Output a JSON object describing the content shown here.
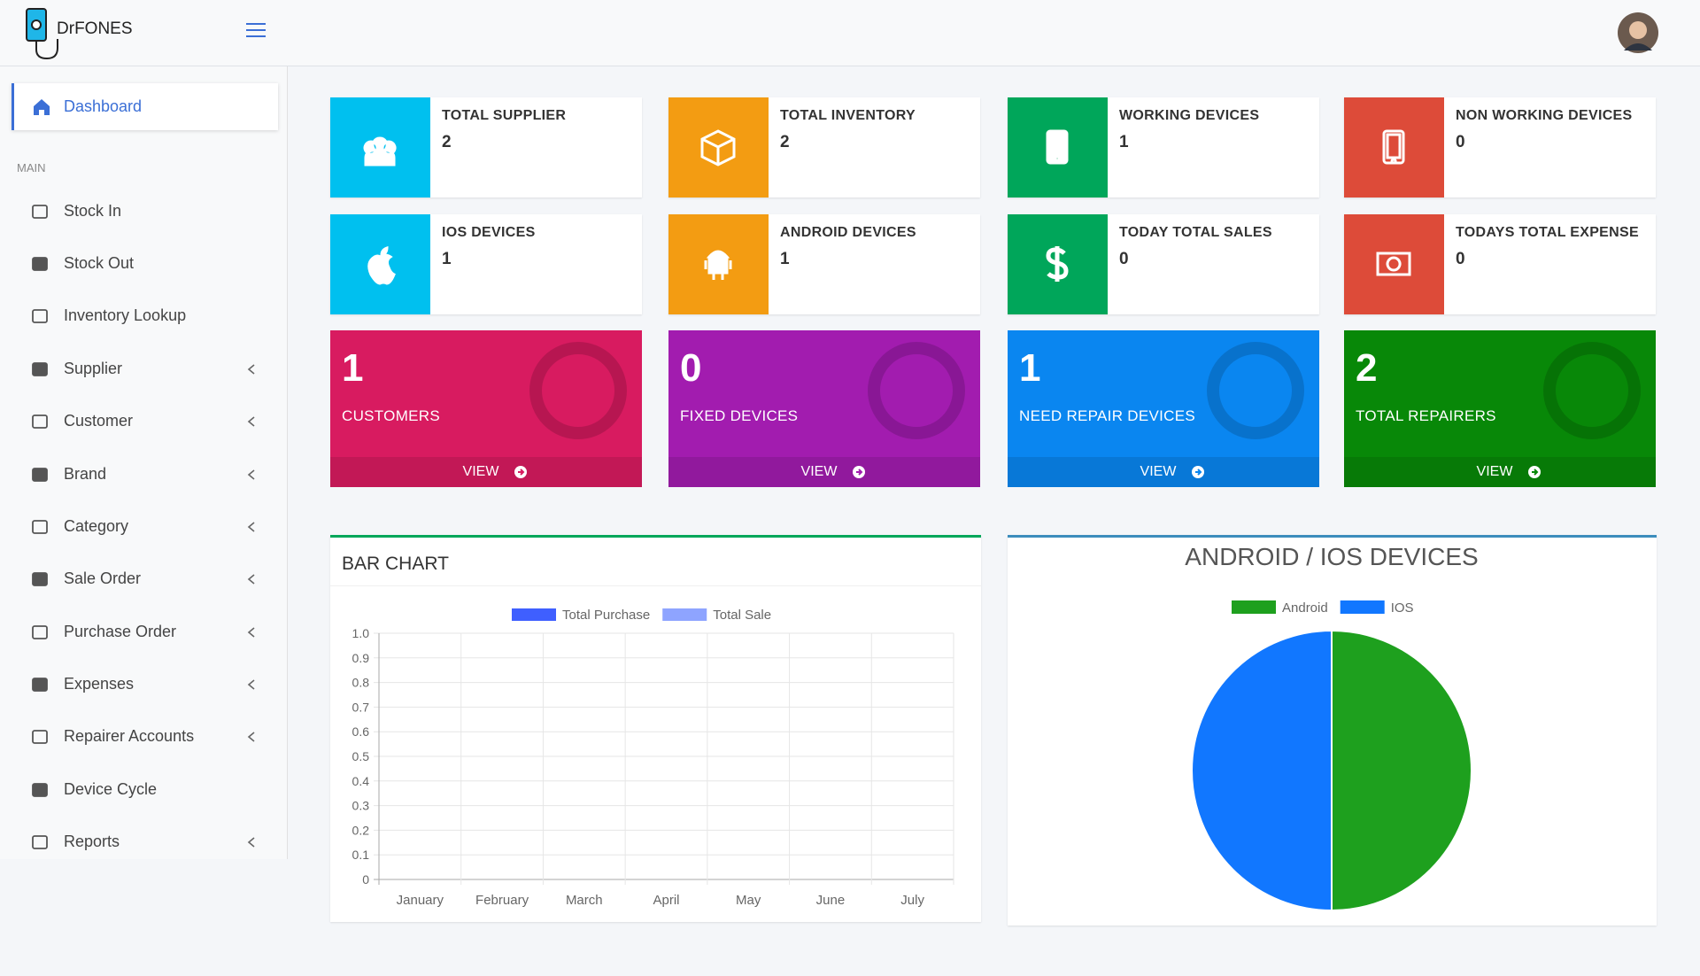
{
  "logo": {
    "prefix": "Dr",
    "name": "FONES"
  },
  "sidebar": {
    "active": "Dashboard",
    "section": "MAIN",
    "items": [
      {
        "label": "Stock In",
        "submenu": false
      },
      {
        "label": "Stock Out",
        "submenu": false
      },
      {
        "label": "Inventory Lookup",
        "submenu": false
      },
      {
        "label": "Supplier",
        "submenu": true
      },
      {
        "label": "Customer",
        "submenu": true
      },
      {
        "label": "Brand",
        "submenu": true
      },
      {
        "label": "Category",
        "submenu": true
      },
      {
        "label": "Sale Order",
        "submenu": true
      },
      {
        "label": "Purchase Order",
        "submenu": true
      },
      {
        "label": "Expenses",
        "submenu": true
      },
      {
        "label": "Repairer Accounts",
        "submenu": true
      },
      {
        "label": "Device Cycle",
        "submenu": false
      },
      {
        "label": "Reports",
        "submenu": true
      }
    ]
  },
  "info_boxes": [
    {
      "title": "TOTAL SUPPLIER",
      "value": 2,
      "color": "#00c0ef"
    },
    {
      "title": "TOTAL INVENTORY",
      "value": 2,
      "color": "#f39c12"
    },
    {
      "title": "WORKING DEVICES",
      "value": 1,
      "color": "#00a65a"
    },
    {
      "title": "NON WORKING DEVICES",
      "value": 0,
      "color": "#dd4b39"
    },
    {
      "title": "IOS DEVICES",
      "value": 1,
      "color": "#00c0ef"
    },
    {
      "title": "ANDROID DEVICES",
      "value": 1,
      "color": "#f39c12"
    },
    {
      "title": "TODAY TOTAL SALES",
      "value": 0,
      "color": "#00a65a"
    },
    {
      "title": "TODAYS TOTAL EXPENSE",
      "value": 0,
      "color": "#dd4b39"
    }
  ],
  "stat_boxes": [
    {
      "value": 1,
      "label": "CUSTOMERS",
      "link": "VIEW",
      "color": "#d81b60"
    },
    {
      "value": 0,
      "label": "FIXED DEVICES",
      "link": "VIEW",
      "color": "#a21caf"
    },
    {
      "value": 1,
      "label": "NEED REPAIR DEVICES",
      "link": "VIEW",
      "color": "#0a86f0"
    },
    {
      "value": 2,
      "label": "TOTAL REPAIRERS",
      "link": "VIEW",
      "color": "#088808"
    }
  ],
  "chart_data": [
    {
      "type": "bar",
      "title": "BAR CHART",
      "categories": [
        "January",
        "February",
        "March",
        "April",
        "May",
        "June",
        "July"
      ],
      "series": [
        {
          "name": "Total Purchase",
          "color": "#3f5fff",
          "values": [
            0,
            0,
            0,
            0,
            0,
            0,
            0
          ]
        },
        {
          "name": "Total Sale",
          "color": "#8ea4ff",
          "values": [
            0,
            0,
            0,
            0,
            0,
            0,
            0
          ]
        }
      ],
      "ylim": [
        0,
        1
      ],
      "yticks": [
        0,
        0.1,
        0.2,
        0.3,
        0.4,
        0.5,
        0.6,
        0.7,
        0.8,
        0.9,
        {
          "value": 1,
          "label": "1.0"
        }
      ],
      "grid": true
    },
    {
      "type": "pie",
      "title": "ANDROID / IOS DEVICES",
      "categories": [
        "Android",
        "IOS"
      ],
      "values": [
        1,
        1
      ],
      "colors": [
        "#1ea01e",
        "#1177ff"
      ]
    }
  ]
}
